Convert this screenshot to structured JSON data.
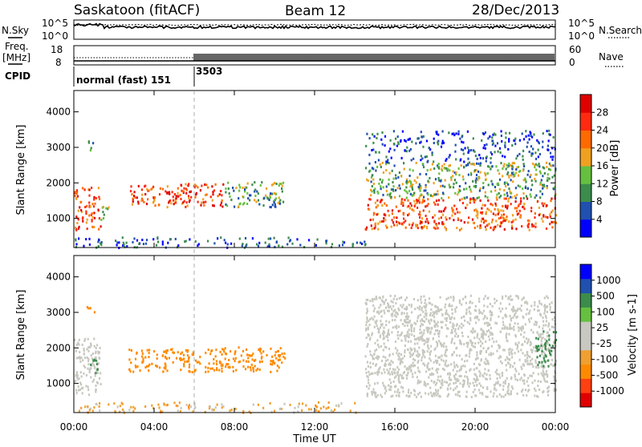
{
  "header": {
    "station": "Saskatoon (fitACF)",
    "beam": "Beam 12",
    "date": "28/Dec/2013"
  },
  "noise_panel": {
    "left_label": "N.Sky",
    "right_label": "N.Search",
    "left_ticks": [
      "10^5",
      "10^0"
    ],
    "right_ticks": [
      "10^5",
      "10^0"
    ]
  },
  "freq_panel": {
    "left_label_1": "Freq.",
    "left_label_2": "[MHz]",
    "left_ticks": [
      "18",
      "8"
    ],
    "right_label": "Nave",
    "right_ticks": [
      "60",
      "0"
    ]
  },
  "cpid_panel": {
    "label": "CPID",
    "segments": [
      {
        "label": "normal (fast) 151",
        "start_h": 0
      },
      {
        "label": "3503",
        "start_h": 6
      }
    ]
  },
  "x_axis": {
    "label": "Time UT",
    "ticks": [
      "00:00",
      "04:00",
      "08:00",
      "12:00",
      "16:00",
      "20:00",
      "00:00"
    ]
  },
  "colors": {
    "power": [
      "#0000ff",
      "#2050b0",
      "#3c8c4c",
      "#66c040",
      "#f0a020",
      "#ff6a00",
      "#ff2a10",
      "#e00000"
    ],
    "velocity": [
      "#e00000",
      "#ff4010",
      "#ff8a00",
      "#f0a030",
      "#c8c8c0",
      "#c8c8c0",
      "#66c040",
      "#3c8c4c",
      "#2050b0",
      "#0000ff"
    ],
    "ground": "#c8c8c0"
  },
  "chart_data": [
    {
      "type": "heatmap",
      "title": "Power",
      "xlabel": "Time UT",
      "ylabel": "Slant Range [km]",
      "xlim": [
        0,
        24
      ],
      "ylim": [
        180,
        4600
      ],
      "y_ticks": [
        1000,
        2000,
        3000,
        4000
      ],
      "colorbar": {
        "label": "Power [dB]",
        "ticks": [
          4,
          8,
          12,
          16,
          20,
          24,
          28
        ],
        "range": [
          0,
          32
        ]
      },
      "regions": [
        {
          "t": [
            0.0,
            1.3
          ],
          "r": [
            700,
            1900
          ],
          "level": "high"
        },
        {
          "t": [
            0.6,
            1.0
          ],
          "r": [
            2950,
            3200
          ],
          "level": "medium"
        },
        {
          "t": [
            1.3,
            1.7
          ],
          "r": [
            900,
            1400
          ],
          "level": "medium"
        },
        {
          "t": [
            2.7,
            7.5
          ],
          "r": [
            1350,
            2000
          ],
          "level": "high"
        },
        {
          "t": [
            7.5,
            10.5
          ],
          "r": [
            1350,
            2050
          ],
          "level": "medium"
        },
        {
          "t": [
            0.0,
            14.5
          ],
          "r": [
            200,
            500
          ],
          "level": "low"
        },
        {
          "t": [
            14.5,
            24.0
          ],
          "r": [
            700,
            1600
          ],
          "level": "high"
        },
        {
          "t": [
            14.5,
            24.0
          ],
          "r": [
            1600,
            2600
          ],
          "level": "medium"
        },
        {
          "t": [
            14.5,
            24.0
          ],
          "r": [
            2600,
            3500
          ],
          "level": "low"
        }
      ]
    },
    {
      "type": "heatmap",
      "title": "Velocity",
      "xlabel": "Time UT",
      "ylabel": "Slant Range [km]",
      "xlim": [
        0,
        24
      ],
      "ylim": [
        180,
        4600
      ],
      "y_ticks": [
        1000,
        2000,
        3000,
        4000
      ],
      "colorbar": {
        "label": "Velocity [m s-1]",
        "ticks": [
          1000,
          500,
          100,
          25,
          -25,
          -100,
          -500,
          -1000
        ]
      },
      "regions": [
        {
          "t": [
            0.0,
            1.3
          ],
          "r": [
            700,
            2300
          ],
          "type": "ground"
        },
        {
          "t": [
            0.8,
            1.3
          ],
          "r": [
            1300,
            1700
          ],
          "v": 200
        },
        {
          "t": [
            0.6,
            1.0
          ],
          "r": [
            3000,
            3200
          ],
          "v": -400
        },
        {
          "t": [
            2.7,
            7.5
          ],
          "r": [
            1350,
            2000
          ],
          "v": -300
        },
        {
          "t": [
            7.5,
            10.5
          ],
          "r": [
            1350,
            2050
          ],
          "v": -200
        },
        {
          "t": [
            0.0,
            14.5
          ],
          "r": [
            200,
            500
          ],
          "v": -50
        },
        {
          "t": [
            14.5,
            24.0
          ],
          "r": [
            650,
            2600
          ],
          "type": "ground"
        },
        {
          "t": [
            14.5,
            24.0
          ],
          "r": [
            2600,
            3500
          ],
          "type": "ground"
        },
        {
          "t": [
            23.0,
            24.0
          ],
          "r": [
            1500,
            2500
          ],
          "v": 300
        }
      ]
    }
  ]
}
